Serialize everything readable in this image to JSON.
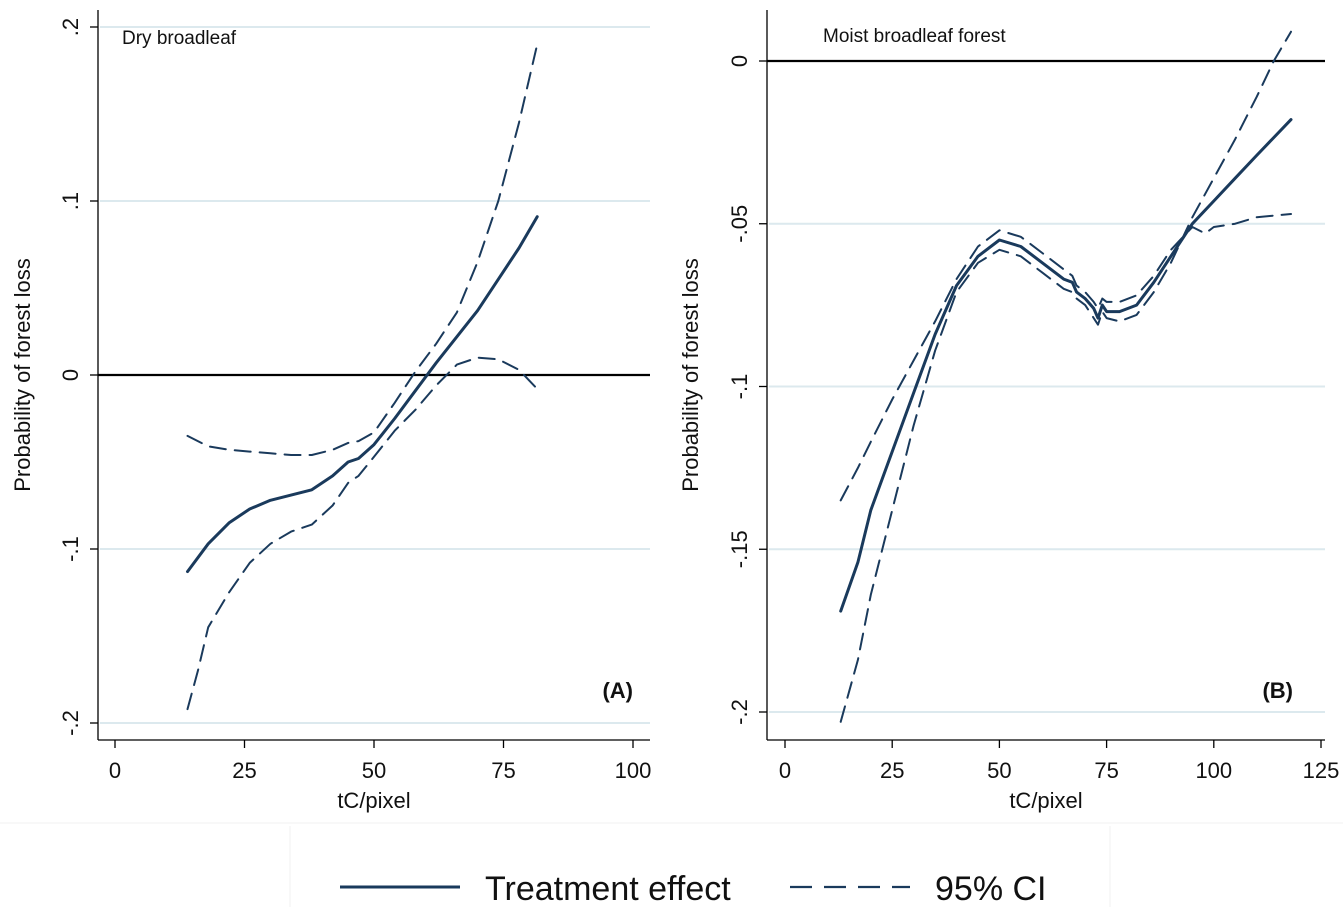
{
  "legend": {
    "items": [
      {
        "label": "Treatment effect",
        "style": "solid"
      },
      {
        "label": "95% CI",
        "style": "dashed"
      }
    ]
  },
  "colors": {
    "series": "#1a3a5c",
    "reference_line": "#000000",
    "grid": "#dce9ee"
  },
  "chart_data": [
    {
      "type": "line",
      "title": "Dry broadleaf",
      "tag": "(A)",
      "xlabel": "tC/pixel",
      "ylabel": "Probability of forest loss",
      "xlim": [
        0,
        100
      ],
      "ylim": [
        -0.2,
        0.2
      ],
      "x_ticks": [
        0,
        25,
        50,
        75,
        100
      ],
      "x_tick_labels": [
        "0",
        "25",
        "50",
        "75",
        "100"
      ],
      "y_ticks": [
        -0.2,
        -0.1,
        0,
        0.1,
        0.2
      ],
      "y_tick_labels": [
        "-.2",
        "-.1",
        "0",
        ".1",
        ".2"
      ],
      "grid": true,
      "reference_y": 0,
      "series": [
        {
          "name": "Treatment effect",
          "style": "solid",
          "x": [
            14,
            18,
            22,
            26,
            30,
            34,
            38,
            42,
            45,
            47,
            50,
            54,
            58,
            62,
            66,
            70,
            74,
            78,
            81.5
          ],
          "y": [
            -0.113,
            -0.097,
            -0.085,
            -0.077,
            -0.072,
            -0.069,
            -0.066,
            -0.058,
            -0.05,
            -0.048,
            -0.04,
            -0.025,
            -0.009,
            0.007,
            0.022,
            0.037,
            0.055,
            0.073,
            0.091
          ]
        },
        {
          "name": "95% CI",
          "style": "dashed",
          "x": [
            14,
            18,
            22,
            26,
            30,
            34,
            38,
            42,
            45,
            47,
            50,
            54,
            58,
            62,
            66,
            70,
            74,
            78,
            81.5
          ],
          "y": [
            -0.035,
            -0.041,
            -0.043,
            -0.044,
            -0.045,
            -0.046,
            -0.046,
            -0.043,
            -0.039,
            -0.038,
            -0.033,
            -0.016,
            0.002,
            0.018,
            0.036,
            0.065,
            0.1,
            0.145,
            0.19
          ]
        },
        {
          "name": "95% CI",
          "style": "dashed",
          "x": [
            14,
            16,
            18,
            22,
            26,
            30,
            34,
            38,
            42,
            45,
            47,
            50,
            54,
            58,
            62,
            66,
            70,
            74,
            78,
            81.5
          ],
          "y": [
            -0.192,
            -0.17,
            -0.145,
            -0.125,
            -0.108,
            -0.097,
            -0.09,
            -0.086,
            -0.075,
            -0.062,
            -0.058,
            -0.047,
            -0.032,
            -0.02,
            -0.006,
            0.006,
            0.01,
            0.009,
            0.003,
            -0.008
          ]
        }
      ]
    },
    {
      "type": "line",
      "title": "Moist broadleaf forest",
      "tag": "(B)",
      "xlabel": "tC/pixel",
      "ylabel": "Probability of forest loss",
      "xlim": [
        0,
        125
      ],
      "ylim": [
        -0.2,
        0
      ],
      "x_ticks": [
        0,
        25,
        50,
        75,
        100,
        125
      ],
      "x_tick_labels": [
        "0",
        "25",
        "50",
        "75",
        "100",
        "125"
      ],
      "y_ticks": [
        -0.2,
        -0.15,
        -0.1,
        -0.05,
        0
      ],
      "y_tick_labels": [
        "-.2",
        "-.15",
        "-.1",
        "-.05",
        "0"
      ],
      "grid": true,
      "reference_y": 0,
      "series": [
        {
          "name": "Treatment effect",
          "style": "solid",
          "x": [
            13,
            17,
            20,
            25,
            30,
            35,
            40,
            45,
            50,
            55,
            60,
            65,
            67,
            68,
            70,
            72,
            73,
            74,
            75,
            78,
            82,
            86,
            90,
            95,
            100,
            105,
            110,
            118
          ],
          "y": [
            -0.169,
            -0.154,
            -0.138,
            -0.12,
            -0.102,
            -0.084,
            -0.069,
            -0.06,
            -0.055,
            -0.057,
            -0.062,
            -0.067,
            -0.068,
            -0.071,
            -0.073,
            -0.076,
            -0.079,
            -0.075,
            -0.077,
            -0.077,
            -0.075,
            -0.068,
            -0.06,
            -0.05,
            -0.043,
            -0.036,
            -0.029,
            -0.018
          ]
        },
        {
          "name": "95% CI",
          "style": "dashed",
          "x": [
            13,
            17,
            20,
            25,
            30,
            35,
            40,
            45,
            50,
            55,
            60,
            65,
            67,
            68,
            70,
            72,
            73,
            74,
            75,
            78,
            82,
            86,
            90,
            95,
            98,
            100,
            105,
            110,
            118
          ],
          "y": [
            -0.135,
            -0.125,
            -0.117,
            -0.104,
            -0.092,
            -0.08,
            -0.067,
            -0.057,
            -0.052,
            -0.054,
            -0.059,
            -0.064,
            -0.066,
            -0.069,
            -0.071,
            -0.074,
            -0.076,
            -0.073,
            -0.074,
            -0.074,
            -0.072,
            -0.066,
            -0.058,
            -0.051,
            -0.053,
            -0.051,
            -0.05,
            -0.048,
            -0.047
          ]
        },
        {
          "name": "95% CI",
          "style": "dashed",
          "x": [
            13,
            17,
            20,
            25,
            30,
            35,
            40,
            45,
            50,
            55,
            60,
            65,
            67,
            68,
            70,
            72,
            73,
            74,
            75,
            78,
            82,
            86,
            90,
            95,
            100,
            105,
            110,
            114,
            118
          ],
          "y": [
            -0.203,
            -0.184,
            -0.164,
            -0.138,
            -0.112,
            -0.089,
            -0.071,
            -0.062,
            -0.058,
            -0.06,
            -0.065,
            -0.07,
            -0.071,
            -0.073,
            -0.075,
            -0.079,
            -0.081,
            -0.077,
            -0.079,
            -0.08,
            -0.078,
            -0.071,
            -0.062,
            -0.048,
            -0.036,
            -0.024,
            -0.011,
            0,
            0.009
          ]
        }
      ]
    }
  ]
}
